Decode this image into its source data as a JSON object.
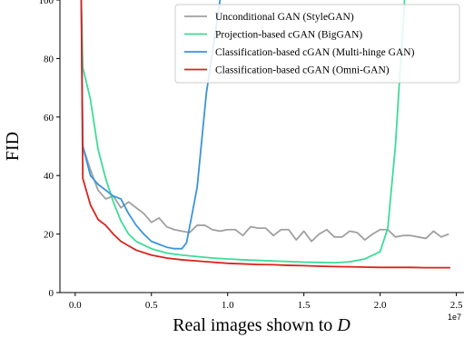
{
  "chart_data": {
    "type": "line",
    "xlabel": "Real images shown to ",
    "xlabel_var": "D",
    "ylabel": "FID",
    "x_exponent_label": "1e7",
    "xlim": [
      -0.1,
      2.55
    ],
    "ylim": [
      0,
      100
    ],
    "x_ticks": [
      0.0,
      0.5,
      1.0,
      1.5,
      2.0,
      2.5
    ],
    "x_tick_labels": [
      "0.0",
      "0.5",
      "1.0",
      "1.5",
      "2.0",
      "2.5"
    ],
    "y_ticks": [
      0,
      20,
      40,
      60,
      80,
      100
    ],
    "y_tick_labels": [
      "0",
      "20",
      "40",
      "60",
      "80",
      "100"
    ],
    "grid": false,
    "legend_position": "top-right",
    "series": [
      {
        "name": "Unconditional GAN (StyleGAN)",
        "color": "#a0a0a0",
        "points": [
          [
            0.04,
            100
          ],
          [
            0.05,
            50
          ],
          [
            0.1,
            42
          ],
          [
            0.15,
            35
          ],
          [
            0.2,
            32
          ],
          [
            0.25,
            33
          ],
          [
            0.3,
            29
          ],
          [
            0.35,
            31
          ],
          [
            0.4,
            29
          ],
          [
            0.45,
            27
          ],
          [
            0.5,
            24
          ],
          [
            0.55,
            25.5
          ],
          [
            0.6,
            22.5
          ],
          [
            0.65,
            21.5
          ],
          [
            0.7,
            21
          ],
          [
            0.75,
            20.5
          ],
          [
            0.8,
            23
          ],
          [
            0.85,
            23
          ],
          [
            0.9,
            21.5
          ],
          [
            0.95,
            21
          ],
          [
            1.0,
            21.5
          ],
          [
            1.05,
            21.5
          ],
          [
            1.1,
            19.5
          ],
          [
            1.15,
            22.5
          ],
          [
            1.2,
            22
          ],
          [
            1.25,
            22
          ],
          [
            1.3,
            19.5
          ],
          [
            1.35,
            21.5
          ],
          [
            1.4,
            21.5
          ],
          [
            1.45,
            18
          ],
          [
            1.5,
            21
          ],
          [
            1.55,
            17.5
          ],
          [
            1.6,
            20
          ],
          [
            1.65,
            21.5
          ],
          [
            1.7,
            19
          ],
          [
            1.75,
            19
          ],
          [
            1.8,
            21
          ],
          [
            1.85,
            20.5
          ],
          [
            1.9,
            18
          ],
          [
            1.95,
            20
          ],
          [
            2.0,
            21.5
          ],
          [
            2.05,
            21.5
          ],
          [
            2.1,
            19
          ],
          [
            2.15,
            19.5
          ],
          [
            2.2,
            19.5
          ],
          [
            2.25,
            19
          ],
          [
            2.3,
            18.5
          ],
          [
            2.35,
            21
          ],
          [
            2.4,
            19
          ],
          [
            2.45,
            20
          ]
        ]
      },
      {
        "name": "Projection-based cGAN (BigGAN)",
        "color": "#3ddc97",
        "points": [
          [
            0.04,
            100
          ],
          [
            0.05,
            77
          ],
          [
            0.1,
            66
          ],
          [
            0.15,
            49
          ],
          [
            0.2,
            39
          ],
          [
            0.25,
            31
          ],
          [
            0.3,
            24.5
          ],
          [
            0.35,
            20
          ],
          [
            0.4,
            17.5
          ],
          [
            0.5,
            15
          ],
          [
            0.6,
            13.5
          ],
          [
            0.7,
            12.8
          ],
          [
            0.8,
            12.3
          ],
          [
            0.9,
            11.8
          ],
          [
            1.0,
            11.5
          ],
          [
            1.1,
            11.2
          ],
          [
            1.2,
            11.0
          ],
          [
            1.3,
            10.8
          ],
          [
            1.4,
            10.6
          ],
          [
            1.5,
            10.4
          ],
          [
            1.6,
            10.3
          ],
          [
            1.7,
            10.2
          ],
          [
            1.8,
            10.5
          ],
          [
            1.9,
            11.5
          ],
          [
            2.0,
            14
          ],
          [
            2.05,
            22
          ],
          [
            2.1,
            50
          ],
          [
            2.13,
            75
          ],
          [
            2.15,
            90
          ],
          [
            2.16,
            100
          ]
        ]
      },
      {
        "name": "Classification-based cGAN (Multi-hinge GAN)",
        "color": "#3a95d8",
        "points": [
          [
            0.04,
            100
          ],
          [
            0.05,
            50
          ],
          [
            0.1,
            40
          ],
          [
            0.15,
            37
          ],
          [
            0.2,
            35
          ],
          [
            0.25,
            33
          ],
          [
            0.3,
            32
          ],
          [
            0.35,
            27
          ],
          [
            0.4,
            23
          ],
          [
            0.45,
            20
          ],
          [
            0.5,
            17.5
          ],
          [
            0.55,
            16.5
          ],
          [
            0.6,
            15.5
          ],
          [
            0.65,
            15
          ],
          [
            0.7,
            15
          ],
          [
            0.73,
            17
          ],
          [
            0.76,
            25
          ],
          [
            0.8,
            36
          ],
          [
            0.83,
            52
          ],
          [
            0.86,
            68
          ],
          [
            0.9,
            82
          ],
          [
            0.95,
            100
          ]
        ]
      },
      {
        "name": "Classification-based cGAN (Omni-GAN)",
        "color": "#d9231c",
        "points": [
          [
            0.04,
            100
          ],
          [
            0.05,
            39
          ],
          [
            0.1,
            30
          ],
          [
            0.15,
            25
          ],
          [
            0.2,
            23
          ],
          [
            0.25,
            20
          ],
          [
            0.3,
            17.5
          ],
          [
            0.35,
            16
          ],
          [
            0.4,
            14.5
          ],
          [
            0.5,
            12.8
          ],
          [
            0.6,
            11.8
          ],
          [
            0.7,
            11.2
          ],
          [
            0.8,
            10.8
          ],
          [
            0.9,
            10.4
          ],
          [
            1.0,
            10.0
          ],
          [
            1.1,
            9.8
          ],
          [
            1.2,
            9.6
          ],
          [
            1.3,
            9.5
          ],
          [
            1.4,
            9.3
          ],
          [
            1.5,
            9.2
          ],
          [
            1.6,
            9.0
          ],
          [
            1.7,
            8.9
          ],
          [
            1.8,
            8.8
          ],
          [
            1.9,
            8.7
          ],
          [
            2.0,
            8.6
          ],
          [
            2.1,
            8.6
          ],
          [
            2.2,
            8.6
          ],
          [
            2.3,
            8.5
          ],
          [
            2.4,
            8.5
          ],
          [
            2.46,
            8.5
          ]
        ]
      }
    ]
  }
}
